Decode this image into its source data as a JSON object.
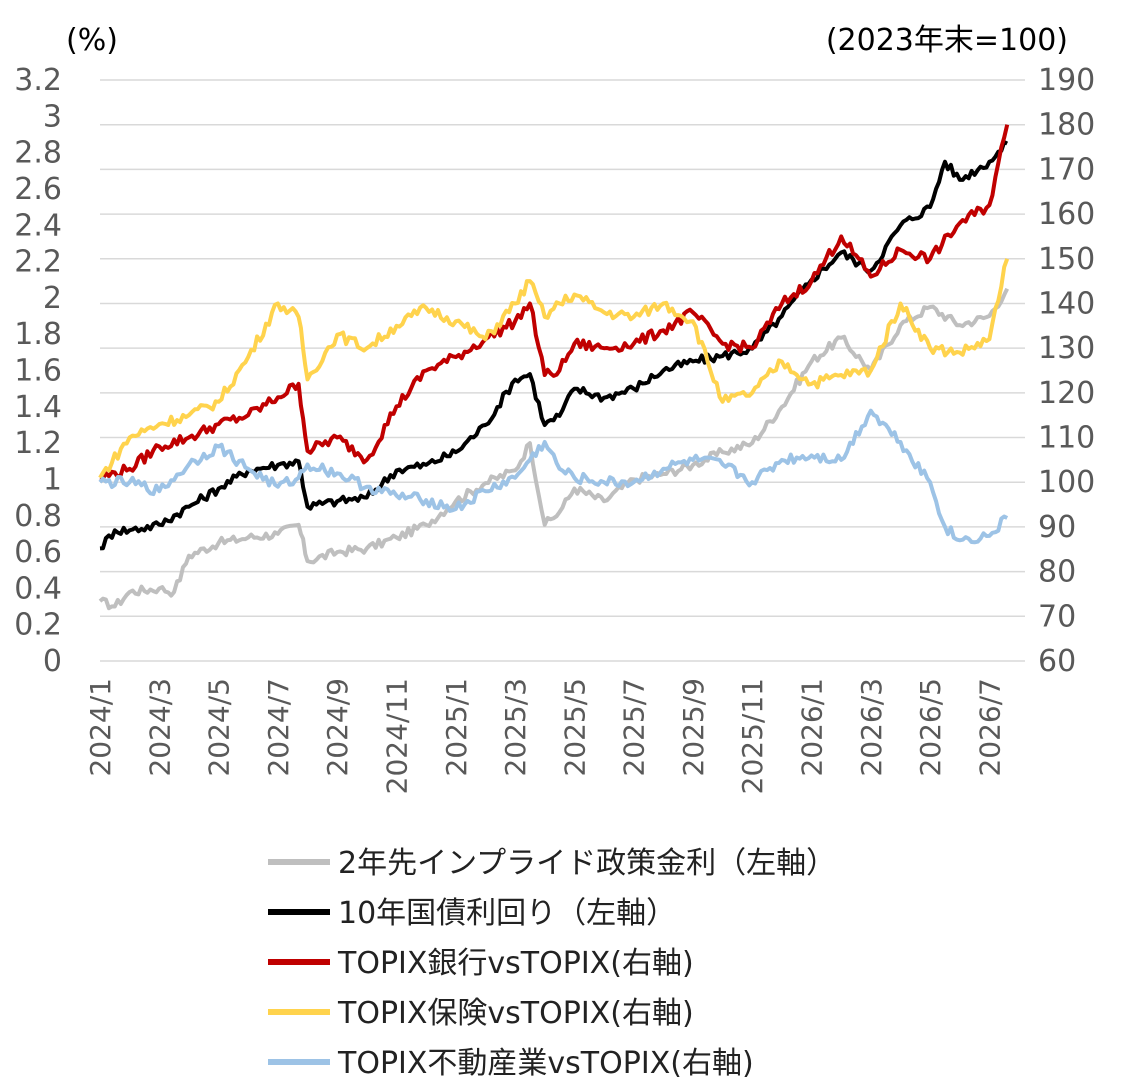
{
  "chart_data": {
    "type": "line",
    "title": "",
    "left_axis": {
      "unit_label": "(%)",
      "range": [
        0,
        3.2
      ],
      "ticks": [
        "0",
        "0.2",
        "0.4",
        "0.6",
        "0.8",
        "1",
        "1.2",
        "1.4",
        "1.6",
        "1.8",
        "2",
        "2.2",
        "2.4",
        "2.6",
        "2.8",
        "3",
        "3.2"
      ]
    },
    "right_axis": {
      "unit_label": "(2023年末=100)",
      "range": [
        60,
        190
      ],
      "ticks": [
        "60",
        "70",
        "80",
        "90",
        "100",
        "110",
        "120",
        "130",
        "140",
        "150",
        "160",
        "170",
        "180",
        "190"
      ]
    },
    "x_ticks": [
      "2024/1",
      "2024/3",
      "2024/5",
      "2024/7",
      "2024/9",
      "2024/11",
      "2025/1",
      "2025/3",
      "2025/5",
      "2025/7",
      "2025/9",
      "2025/11",
      "2026/1",
      "2026/3",
      "2026/5",
      "2026/7"
    ],
    "grid": "horizontal",
    "legend_position": "bottom",
    "series": [
      {
        "name": "2年先インプライド政策金利（左軸）",
        "axis": "left",
        "color": "#bfbfbf",
        "points": [
          [
            "2024/1",
            0.33
          ],
          [
            "2024/1.5",
            0.3
          ],
          [
            "2024/2",
            0.38
          ],
          [
            "2024/3",
            0.4
          ],
          [
            "2024/3.5",
            0.38
          ],
          [
            "2024/4",
            0.58
          ],
          [
            "2024/5",
            0.65
          ],
          [
            "2024/6",
            0.68
          ],
          [
            "2024/7",
            0.7
          ],
          [
            "2024/7.7",
            0.75
          ],
          [
            "2024/8",
            0.55
          ],
          [
            "2024/9",
            0.6
          ],
          [
            "2024/10",
            0.62
          ],
          [
            "2024/11",
            0.68
          ],
          [
            "2024/12",
            0.75
          ],
          [
            "2025/1",
            0.88
          ],
          [
            "2025/2",
            0.98
          ],
          [
            "2025/3",
            1.05
          ],
          [
            "2025/3.5",
            1.2
          ],
          [
            "2025/4",
            0.75
          ],
          [
            "2025/4.5",
            0.82
          ],
          [
            "2025/5",
            0.95
          ],
          [
            "2025/6",
            0.88
          ],
          [
            "2025/7",
            1.0
          ],
          [
            "2025/8",
            1.03
          ],
          [
            "2025/9",
            1.08
          ],
          [
            "2025/10",
            1.15
          ],
          [
            "2025/11",
            1.2
          ],
          [
            "2025/12",
            1.4
          ],
          [
            "2026/1",
            1.65
          ],
          [
            "2026/2",
            1.78
          ],
          [
            "2026/3",
            1.6
          ],
          [
            "2026/4",
            1.85
          ],
          [
            "2026/5",
            1.95
          ],
          [
            "2026/6",
            1.85
          ],
          [
            "2026/7",
            1.9
          ],
          [
            "2026/7.6",
            2.05
          ]
        ]
      },
      {
        "name": "10年国債利回り（左軸）",
        "axis": "left",
        "color": "#000000",
        "points": [
          [
            "2024/1",
            0.62
          ],
          [
            "2024/1.5",
            0.72
          ],
          [
            "2024/2",
            0.72
          ],
          [
            "2024/3",
            0.75
          ],
          [
            "2024/4",
            0.85
          ],
          [
            "2024/5",
            0.95
          ],
          [
            "2024/6",
            1.05
          ],
          [
            "2024/7",
            1.08
          ],
          [
            "2024/7.7",
            1.1
          ],
          [
            "2024/8",
            0.85
          ],
          [
            "2024/9",
            0.88
          ],
          [
            "2024/10",
            0.9
          ],
          [
            "2024/11",
            1.05
          ],
          [
            "2024/12",
            1.08
          ],
          [
            "2025/1",
            1.15
          ],
          [
            "2025/2",
            1.3
          ],
          [
            "2025/3",
            1.55
          ],
          [
            "2025/3.5",
            1.58
          ],
          [
            "2025/4",
            1.3
          ],
          [
            "2025/4.5",
            1.35
          ],
          [
            "2025/5",
            1.5
          ],
          [
            "2025/6",
            1.45
          ],
          [
            "2025/7",
            1.5
          ],
          [
            "2025/8",
            1.6
          ],
          [
            "2025/9",
            1.65
          ],
          [
            "2025/10",
            1.68
          ],
          [
            "2025/11",
            1.72
          ],
          [
            "2025/12",
            1.9
          ],
          [
            "2026/1",
            2.1
          ],
          [
            "2026/2",
            2.25
          ],
          [
            "2026/3",
            2.15
          ],
          [
            "2026/4",
            2.4
          ],
          [
            "2026/5",
            2.5
          ],
          [
            "2026/5.5",
            2.75
          ],
          [
            "2026/6",
            2.65
          ],
          [
            "2026/7",
            2.75
          ],
          [
            "2026/7.6",
            2.85
          ]
        ]
      },
      {
        "name": "TOPIX銀行vsTOPIX(右軸)",
        "axis": "right",
        "color": "#c00000",
        "points": [
          [
            "2024/1",
            101
          ],
          [
            "2024/2",
            103
          ],
          [
            "2024/3",
            108
          ],
          [
            "2024/4",
            110
          ],
          [
            "2024/5",
            113
          ],
          [
            "2024/6",
            115
          ],
          [
            "2024/7",
            119
          ],
          [
            "2024/7.7",
            122
          ],
          [
            "2024/8",
            107
          ],
          [
            "2024/9",
            110
          ],
          [
            "2024/10",
            105
          ],
          [
            "2024/11",
            117
          ],
          [
            "2024/12",
            125
          ],
          [
            "2025/1",
            128
          ],
          [
            "2025/2",
            132
          ],
          [
            "2025/3",
            136
          ],
          [
            "2025/3.5",
            140
          ],
          [
            "2025/4",
            124
          ],
          [
            "2025/4.5",
            125
          ],
          [
            "2025/5",
            131
          ],
          [
            "2025/6",
            130
          ],
          [
            "2025/7",
            131
          ],
          [
            "2025/8",
            134
          ],
          [
            "2025/9",
            138
          ],
          [
            "2025/10",
            131
          ],
          [
            "2025/11",
            130
          ],
          [
            "2025/12",
            140
          ],
          [
            "2026/1",
            145
          ],
          [
            "2026/2",
            155
          ],
          [
            "2026/3",
            146
          ],
          [
            "2026/4",
            152
          ],
          [
            "2026/5",
            150
          ],
          [
            "2026/6",
            158
          ],
          [
            "2026/7",
            162
          ],
          [
            "2026/7.6",
            180
          ]
        ]
      },
      {
        "name": "TOPIX保険vsTOPIX(右軸)",
        "axis": "right",
        "color": "#ffd34d",
        "points": [
          [
            "2024/1",
            101
          ],
          [
            "2024/2",
            110
          ],
          [
            "2024/3",
            113
          ],
          [
            "2024/4",
            115
          ],
          [
            "2024/5",
            118
          ],
          [
            "2024/6",
            128
          ],
          [
            "2024/7",
            140
          ],
          [
            "2024/7.7",
            137
          ],
          [
            "2024/8",
            123
          ],
          [
            "2024/9",
            133
          ],
          [
            "2024/10",
            130
          ],
          [
            "2024/11",
            135
          ],
          [
            "2024/12",
            139
          ],
          [
            "2025/1",
            136
          ],
          [
            "2025/2",
            132
          ],
          [
            "2025/3",
            140
          ],
          [
            "2025/3.5",
            145
          ],
          [
            "2025/4",
            137
          ],
          [
            "2025/4.5",
            140
          ],
          [
            "2025/5",
            142
          ],
          [
            "2025/6",
            138
          ],
          [
            "2025/7",
            137
          ],
          [
            "2025/8",
            140
          ],
          [
            "2025/9",
            136
          ],
          [
            "2025/10",
            118
          ],
          [
            "2025/11",
            120
          ],
          [
            "2025/12",
            127
          ],
          [
            "2026/1",
            122
          ],
          [
            "2026/2",
            124
          ],
          [
            "2026/3",
            125
          ],
          [
            "2026/4",
            140
          ],
          [
            "2026/5",
            130
          ],
          [
            "2026/6",
            129
          ],
          [
            "2026/7",
            132
          ],
          [
            "2026/7.6",
            150
          ]
        ]
      },
      {
        "name": "TOPIX不動産業vsTOPIX(右軸)",
        "axis": "right",
        "color": "#9dc3e6",
        "points": [
          [
            "2024/1",
            100
          ],
          [
            "2024/2",
            100
          ],
          [
            "2024/3",
            98
          ],
          [
            "2024/4",
            104
          ],
          [
            "2024/5",
            108
          ],
          [
            "2024/6",
            103
          ],
          [
            "2024/7",
            99
          ],
          [
            "2024/7.7",
            101
          ],
          [
            "2024/8",
            104
          ],
          [
            "2024/9",
            102
          ],
          [
            "2024/10",
            99
          ],
          [
            "2024/11",
            97
          ],
          [
            "2024/12",
            96
          ],
          [
            "2025/1",
            94
          ],
          [
            "2025/2",
            98
          ],
          [
            "2025/3",
            101
          ],
          [
            "2025/3.5",
            105
          ],
          [
            "2025/4",
            109
          ],
          [
            "2025/4.5",
            103
          ],
          [
            "2025/5",
            101
          ],
          [
            "2025/6",
            100
          ],
          [
            "2025/7",
            100
          ],
          [
            "2025/8",
            103
          ],
          [
            "2025/9",
            105
          ],
          [
            "2025/10",
            104
          ],
          [
            "2025/11",
            100
          ],
          [
            "2025/12",
            105
          ],
          [
            "2026/1",
            106
          ],
          [
            "2026/2",
            105
          ],
          [
            "2026/3",
            116
          ],
          [
            "2026/4",
            109
          ],
          [
            "2026/5",
            100
          ],
          [
            "2026/5.5",
            90
          ],
          [
            "2026/6",
            87
          ],
          [
            "2026/7",
            88
          ],
          [
            "2026/7.6",
            92
          ]
        ]
      }
    ]
  }
}
